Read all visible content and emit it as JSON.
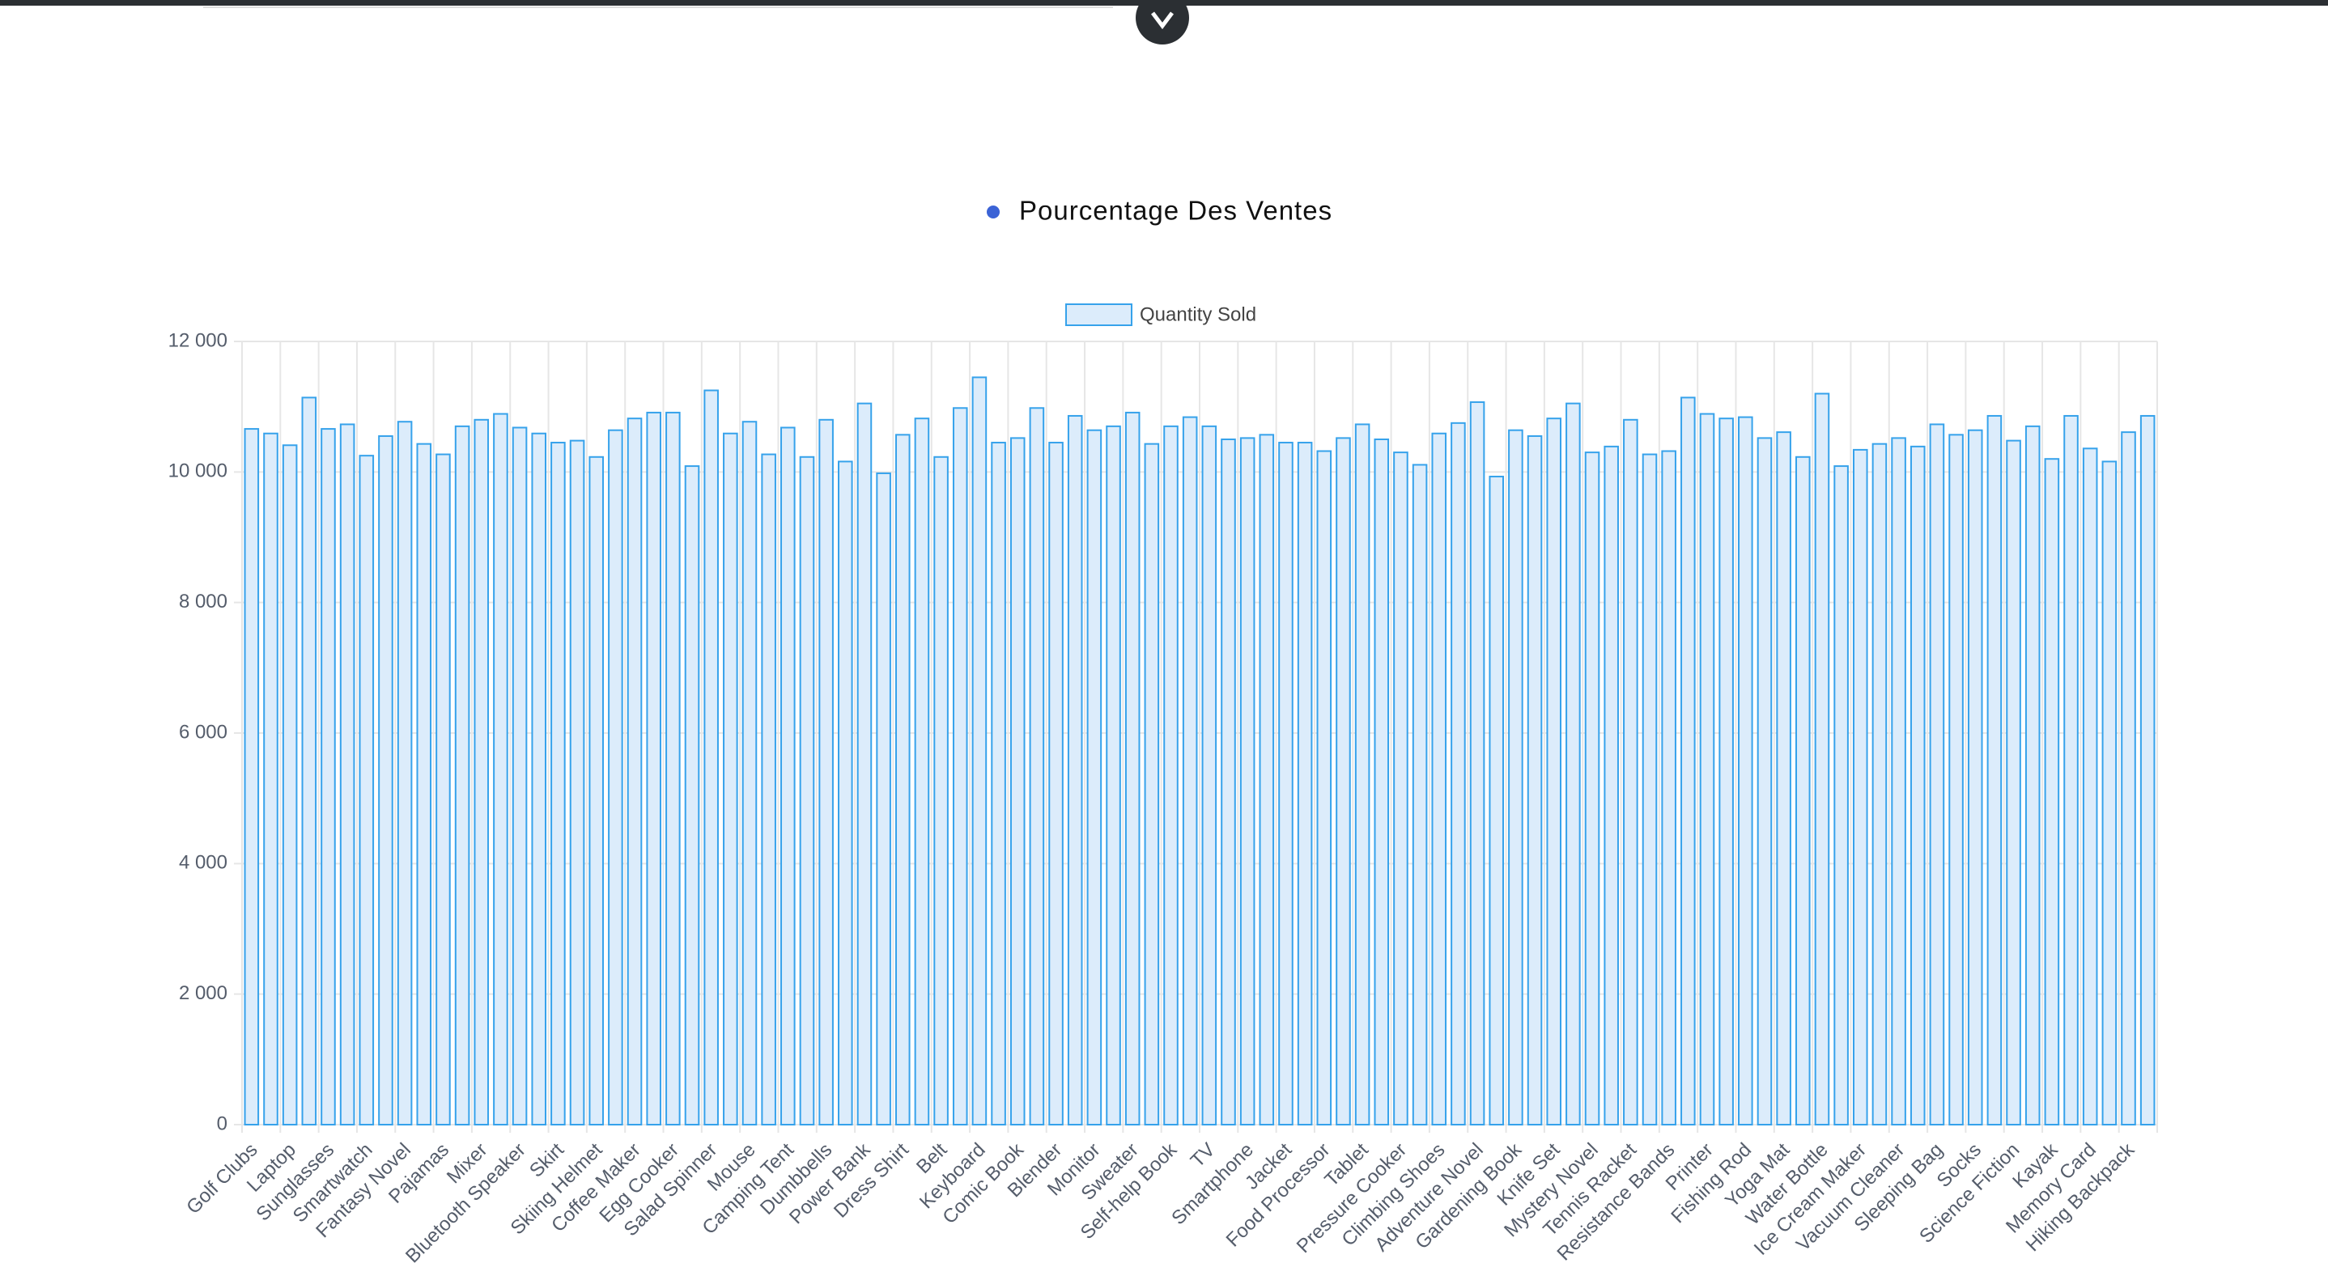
{
  "chart_data": {
    "type": "bar",
    "toggle_label": "Pourcentage Des Ventes",
    "toggle_color": "#3b63d6",
    "categories": [
      "Golf Clubs",
      null,
      "Laptop",
      null,
      "Sunglasses",
      null,
      "Smartwatch",
      null,
      "Fantasy Novel",
      null,
      "Pajamas",
      null,
      "Mixer",
      null,
      "Bluetooth Speaker",
      null,
      "Skirt",
      null,
      "Skiing Helmet",
      null,
      "Coffee Maker",
      null,
      "Egg Cooker",
      null,
      "Salad Spinner",
      null,
      "Mouse",
      null,
      "Camping Tent",
      null,
      "Dumbbells",
      null,
      "Power Bank",
      null,
      "Dress Shirt",
      null,
      "Belt",
      null,
      "Keyboard",
      null,
      "Comic Book",
      null,
      "Blender",
      null,
      "Monitor",
      null,
      "Sweater",
      null,
      "Self-help Book",
      null,
      "TV",
      null,
      "Smartphone",
      null,
      "Jacket",
      null,
      "Food Processor",
      null,
      "Tablet",
      null,
      "Pressure Cooker",
      null,
      "Climbing Shoes",
      null,
      "Adventure Novel",
      null,
      "Gardening Book",
      null,
      "Knife Set",
      null,
      "Mystery Novel",
      null,
      "Tennis Racket",
      null,
      "Resistance Bands",
      null,
      "Printer",
      null,
      "Fishing Rod",
      null,
      "Yoga Mat",
      null,
      "Water Bottle",
      null,
      "Ice Cream Maker",
      null,
      "Vacuum Cleaner",
      null,
      "Sleeping Bag",
      null,
      "Socks",
      null,
      "Science Fiction",
      null,
      "Kayak",
      null,
      "Memory Card",
      null,
      "Hiking Backpack",
      null
    ],
    "series": [
      {
        "name": "Quantity Sold",
        "color": "#36a2eb",
        "fill": "#dcecfb",
        "values": [
          10660,
          10590,
          10410,
          11140,
          10660,
          10730,
          10250,
          10550,
          10770,
          10430,
          10270,
          10700,
          10800,
          10890,
          10680,
          10590,
          10450,
          10480,
          10230,
          10640,
          10820,
          10910,
          10910,
          10090,
          11250,
          10590,
          10770,
          10270,
          10680,
          10230,
          10800,
          10160,
          11050,
          9980,
          10570,
          10820,
          10230,
          10980,
          11450,
          10450,
          10520,
          10980,
          10450,
          10860,
          10640,
          10700,
          10910,
          10430,
          10700,
          10840,
          10700,
          10500,
          10520,
          10570,
          10450,
          10450,
          10320,
          10520,
          10730,
          10500,
          10300,
          10110,
          10590,
          10750,
          11070,
          9930,
          10640,
          10550,
          10820,
          11050,
          10300,
          10390,
          10800,
          10270,
          10320,
          11140,
          10890,
          10820,
          10840,
          10520,
          10610,
          10230,
          11200,
          10090,
          10340,
          10430,
          10520,
          10390,
          10730,
          10570,
          10640,
          10860,
          10480,
          10700,
          10200,
          10860,
          10360,
          10160,
          10610,
          10860
        ]
      }
    ],
    "ylim": [
      0,
      12000
    ],
    "yticks": [
      0,
      {
        "value": 2000,
        "label": "2 000"
      },
      {
        "value": 4000,
        "label": "4 000"
      },
      {
        "value": 6000,
        "label": "6 000"
      },
      {
        "value": 8000,
        "label": "8 000"
      },
      {
        "value": 10000,
        "label": "10 000"
      },
      {
        "value": 12000,
        "label": "12 000"
      }
    ],
    "grid": true
  }
}
